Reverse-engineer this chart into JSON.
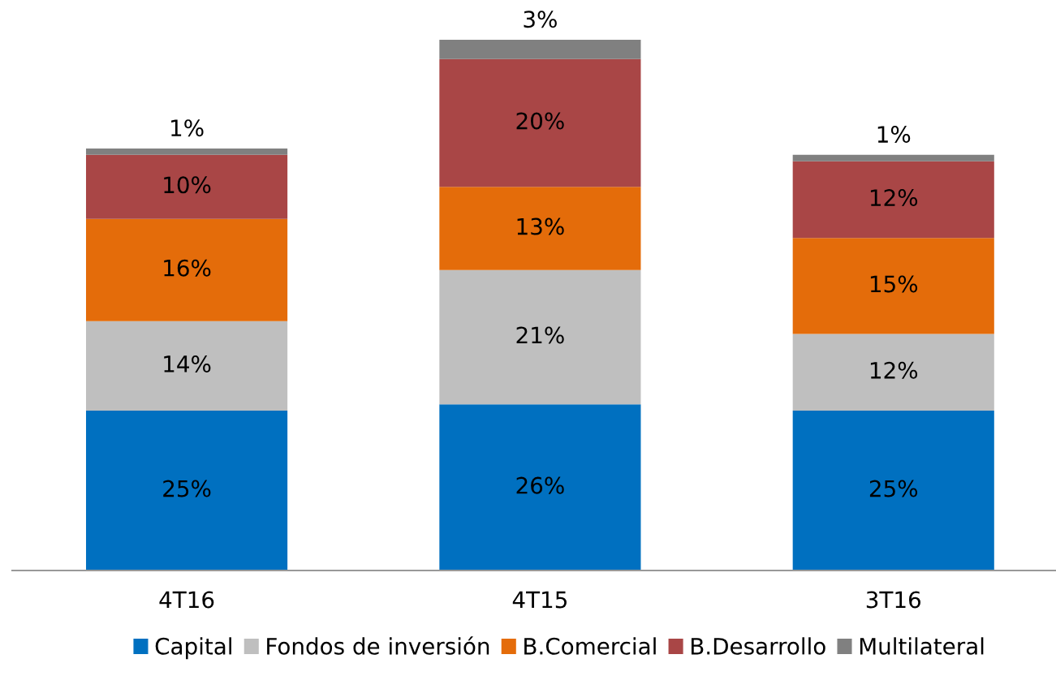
{
  "chart_data": {
    "type": "bar",
    "stacked": true,
    "legend": "bottom",
    "grid": false,
    "categories": [
      "4T16",
      "4T15",
      "3T16"
    ],
    "series": [
      {
        "name": "Capital",
        "color": "#0070c0",
        "values": [
          25,
          26,
          25
        ],
        "value_labels": [
          "25%",
          "26%",
          "25%"
        ]
      },
      {
        "name": "Fondos de inversión",
        "color": "#bfbfbf",
        "values": [
          14,
          21,
          12
        ],
        "value_labels": [
          "14%",
          "21%",
          "12%"
        ]
      },
      {
        "name": "B.Comercial",
        "color": "#e46c0a",
        "values": [
          16,
          13,
          15
        ],
        "value_labels": [
          "16%",
          "13%",
          "15%"
        ]
      },
      {
        "name": "B.Desarrollo",
        "color": "#a94646",
        "values": [
          10,
          20,
          12
        ],
        "value_labels": [
          "10%",
          "20%",
          "12%"
        ]
      },
      {
        "name": "Multilateral",
        "color": "#808080",
        "values": [
          1,
          3,
          1
        ],
        "value_labels": [
          "1%",
          "3%",
          "1%"
        ]
      }
    ]
  }
}
